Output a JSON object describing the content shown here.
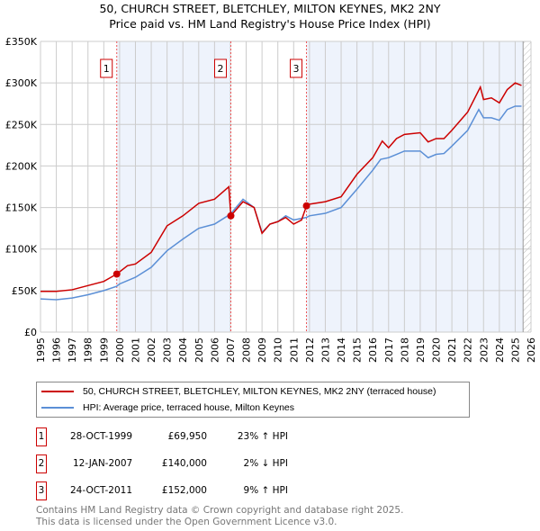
{
  "chart_data": {
    "type": "line",
    "title": "50, CHURCH STREET, BLETCHLEY, MILTON KEYNES, MK2 2NY",
    "subtitle": "Price paid vs. HM Land Registry's House Price Index (HPI)",
    "xlim": [
      1995,
      2026
    ],
    "ylim": [
      0,
      350000
    ],
    "yticks": [
      {
        "v": 0,
        "label": "£0"
      },
      {
        "v": 50000,
        "label": "£50K"
      },
      {
        "v": 100000,
        "label": "£100K"
      },
      {
        "v": 150000,
        "label": "£150K"
      },
      {
        "v": 200000,
        "label": "£200K"
      },
      {
        "v": 250000,
        "label": "£250K"
      },
      {
        "v": 300000,
        "label": "£300K"
      },
      {
        "v": 350000,
        "label": "£350K"
      }
    ],
    "xticks": [
      "1995",
      "1996",
      "1997",
      "1998",
      "1999",
      "2000",
      "2001",
      "2002",
      "2003",
      "2004",
      "2005",
      "2006",
      "2007",
      "2008",
      "2009",
      "2010",
      "2011",
      "2012",
      "2013",
      "2014",
      "2015",
      "2016",
      "2017",
      "2018",
      "2019",
      "2020",
      "2021",
      "2022",
      "2023",
      "2024",
      "2025",
      "2026"
    ],
    "grid": true,
    "series": [
      {
        "name": "50, CHURCH STREET, BLETCHLEY, MILTON KEYNES, MK2 2NY (terraced house)",
        "color": "#cc0000",
        "x": [
          1995,
          1996,
          1997,
          1998,
          1999,
          1999.82,
          2000.5,
          2001,
          2002,
          2003,
          2004,
          2005,
          2006,
          2006.9,
          2007.03,
          2007.8,
          2008.5,
          2009,
          2009.5,
          2010,
          2010.5,
          2011,
          2011.5,
          2011.81,
          2012,
          2013,
          2014,
          2015,
          2016,
          2016.6,
          2017,
          2017.5,
          2018,
          2019,
          2019.5,
          2020,
          2020.5,
          2021,
          2022,
          2022.8,
          2023,
          2023.5,
          2024,
          2024.5,
          2025,
          2025.4
        ],
        "y": [
          49000,
          49000,
          51000,
          56000,
          61000,
          69950,
          80000,
          82000,
          96000,
          128000,
          140000,
          155000,
          160000,
          175000,
          140000,
          157000,
          150000,
          119000,
          130000,
          133000,
          138000,
          130000,
          135000,
          152000,
          154000,
          157000,
          163000,
          190000,
          210000,
          230000,
          222000,
          233000,
          238000,
          240000,
          229000,
          233000,
          233000,
          243000,
          265000,
          295000,
          280000,
          282000,
          276000,
          292000,
          300000,
          297000
        ]
      },
      {
        "name": "HPI: Average price, terraced house, Milton Keynes",
        "color": "#5b8fd6",
        "x": [
          1995,
          1996,
          1997,
          1998,
          1999,
          1999.8,
          2000,
          2001,
          2002,
          2003,
          2004,
          2005,
          2006,
          2007,
          2007.8,
          2008.5,
          2009,
          2009.5,
          2010,
          2010.5,
          2011,
          2011.8,
          2012,
          2013,
          2014,
          2015,
          2016,
          2016.5,
          2017,
          2017.5,
          2018,
          2019,
          2019.5,
          2020,
          2020.5,
          2021,
          2022,
          2022.7,
          2023,
          2023.5,
          2024,
          2024.5,
          2025,
          2025.4
        ],
        "y": [
          40000,
          39000,
          41000,
          45000,
          50000,
          55000,
          58000,
          66000,
          78000,
          98000,
          112000,
          125000,
          130000,
          142000,
          160000,
          150000,
          120000,
          130000,
          133000,
          140000,
          135000,
          138000,
          140000,
          143000,
          150000,
          172000,
          195000,
          208000,
          210000,
          214000,
          218000,
          218000,
          210000,
          214000,
          215000,
          224000,
          243000,
          268000,
          258000,
          258000,
          255000,
          268000,
          272000,
          272000
        ]
      }
    ],
    "sales": [
      {
        "num": "1",
        "date": "28-OCT-1999",
        "x": 1999.82,
        "price": "£69,950",
        "value": 69950,
        "hpi": "23% ↑ HPI"
      },
      {
        "num": "2",
        "date": "12-JAN-2007",
        "x": 2007.03,
        "price": "£140,000",
        "value": 140000,
        "hpi": "2% ↓ HPI"
      },
      {
        "num": "3",
        "date": "24-OCT-2011",
        "x": 2011.81,
        "price": "£152,000",
        "value": 152000,
        "hpi": "9% ↑ HPI"
      }
    ],
    "forecast_start": 2025.5
  },
  "footer": {
    "line1": "Contains HM Land Registry data © Crown copyright and database right 2025.",
    "line2": "This data is licensed under the Open Government Licence v3.0."
  }
}
